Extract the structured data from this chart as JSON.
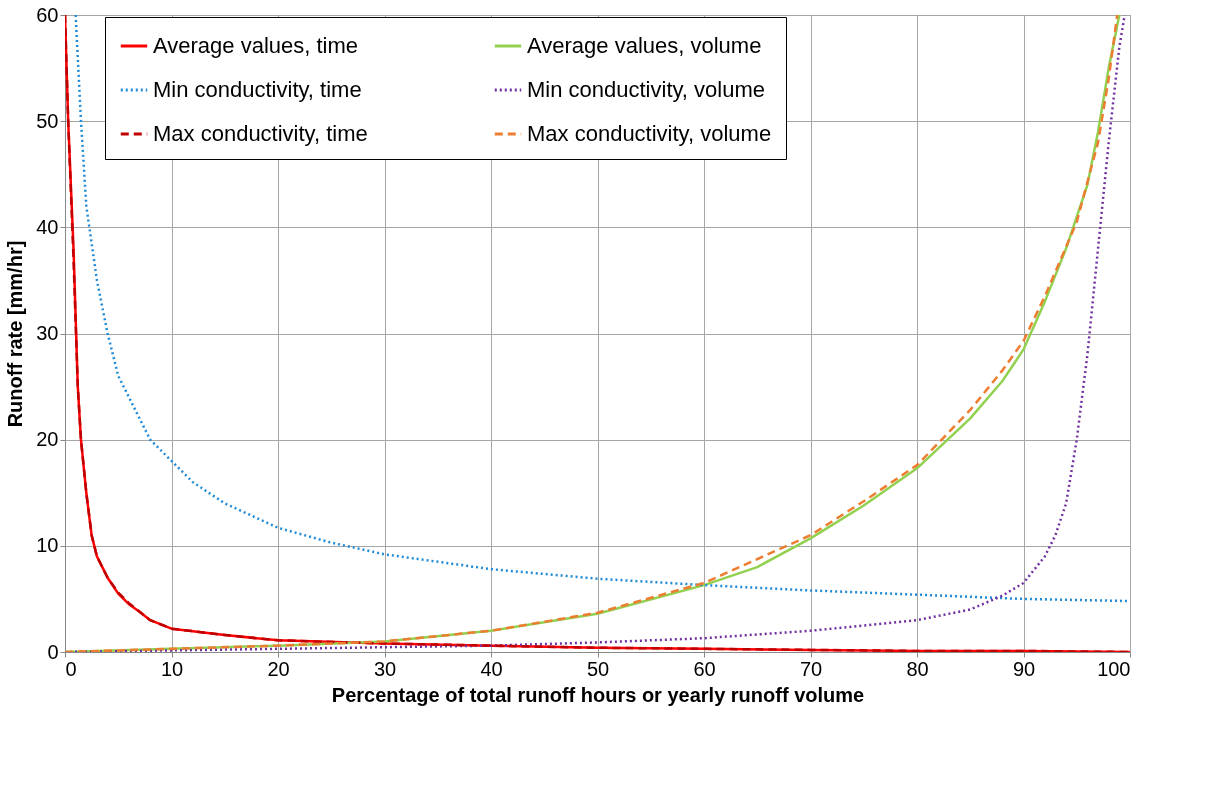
{
  "chart_data": {
    "type": "line",
    "xlabel": "Percentage of total runoff hours or yearly runoff volume",
    "ylabel": "Runoff  rate [mm/hr]",
    "xlim": [
      0,
      100
    ],
    "xticks": [
      0,
      10,
      20,
      30,
      40,
      50,
      60,
      70,
      80,
      90,
      100
    ],
    "ylim": [
      0,
      60
    ],
    "yticks": [
      0,
      10,
      20,
      30,
      40,
      50,
      60
    ],
    "grid": true,
    "legend": "top",
    "series": [
      {
        "name": "Average values, time",
        "color": "#ff0000",
        "line_style": "solid",
        "x": [
          0,
          0.3,
          0.8,
          1.2,
          1.5,
          2,
          2.5,
          3,
          4,
          5,
          6,
          7,
          8,
          10,
          15,
          20,
          30,
          40,
          50,
          60,
          70,
          80,
          90,
          100
        ],
        "values": [
          60,
          50,
          38,
          25,
          20,
          15,
          11,
          9,
          7,
          5.5,
          4.5,
          3.8,
          3,
          2.2,
          1.6,
          1.1,
          0.8,
          0.6,
          0.4,
          0.3,
          0.2,
          0.1,
          0.1,
          0
        ]
      },
      {
        "name": "Average values, volume",
        "color": "#92d050",
        "line_style": "solid",
        "x": [
          0,
          10,
          20,
          30,
          40,
          50,
          60,
          65,
          70,
          75,
          80,
          85,
          88,
          90,
          92,
          94,
          96,
          97,
          98,
          99
        ],
        "values": [
          0,
          0.3,
          0.6,
          1.0,
          2.0,
          3.6,
          6.3,
          8.0,
          10.7,
          13.8,
          17.3,
          22,
          25.5,
          28.5,
          33,
          38,
          44,
          49,
          55,
          60
        ]
      },
      {
        "name": "Min conductivity, time",
        "color": "#1f8ad6",
        "line_style": "dotted",
        "x": [
          1,
          1.5,
          2,
          3,
          4,
          5,
          7,
          8,
          10,
          12,
          15,
          20,
          25,
          30,
          40,
          50,
          60,
          70,
          80,
          90,
          100
        ],
        "values": [
          60,
          50,
          42,
          35,
          30,
          26,
          22,
          20,
          18,
          16,
          14,
          11.7,
          10.3,
          9.2,
          7.8,
          6.9,
          6.3,
          5.8,
          5.4,
          5.0,
          4.8
        ]
      },
      {
        "name": "Min conductivity, volume",
        "color": "#7030a0",
        "line_style": "dotted",
        "x": [
          0,
          20,
          40,
          50,
          60,
          70,
          80,
          85,
          88,
          90,
          92,
          93,
          94,
          95,
          96,
          97,
          98,
          99,
          99.5
        ],
        "values": [
          0,
          0.3,
          0.6,
          0.9,
          1.3,
          2,
          3,
          4,
          5.3,
          6.5,
          9,
          11,
          14,
          20,
          28,
          38,
          48,
          57,
          60
        ]
      },
      {
        "name": "Max conductivity, time",
        "color": "#c00000",
        "line_style": "dashed",
        "x": [
          0,
          0.3,
          0.8,
          1.2,
          1.5,
          2,
          2.5,
          3,
          4,
          5,
          6,
          7,
          8,
          10,
          15,
          20,
          30,
          40,
          50,
          60,
          70,
          80,
          90,
          100
        ],
        "values": [
          60,
          50,
          37,
          25,
          20,
          15,
          11,
          9,
          7,
          5.6,
          4.6,
          3.8,
          3,
          2.2,
          1.6,
          1.1,
          0.8,
          0.6,
          0.4,
          0.3,
          0.2,
          0.1,
          0.1,
          0
        ]
      },
      {
        "name": "Max conductivity, volume",
        "color": "#ed7d31",
        "line_style": "dashed",
        "x": [
          0,
          10,
          20,
          30,
          40,
          50,
          60,
          70,
          75,
          80,
          85,
          88,
          90,
          92,
          95,
          97,
          98,
          98.8
        ],
        "values": [
          0,
          0.3,
          0.6,
          1.0,
          2.0,
          3.7,
          6.5,
          11,
          14.2,
          17.6,
          22.8,
          26.5,
          29.3,
          33.5,
          40.5,
          48,
          54,
          60
        ]
      }
    ]
  }
}
